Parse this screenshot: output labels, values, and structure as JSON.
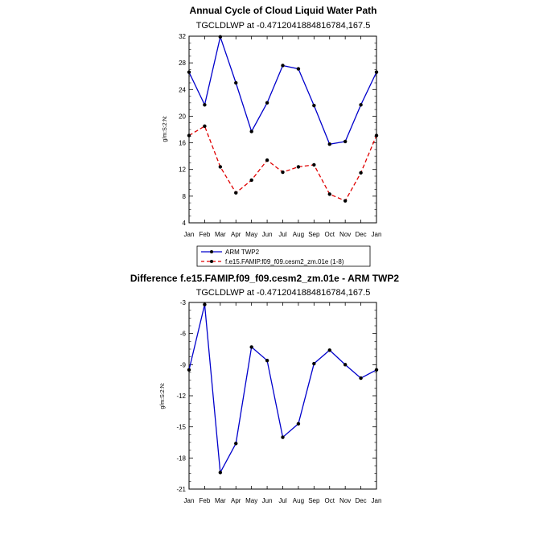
{
  "chart_data": [
    {
      "type": "line",
      "title": "Annual Cycle of Cloud Liquid Water Path",
      "subtitle": "TGCLDLWP at -0.4712041884816784,167.5",
      "ylabel": "g/m:S:2:N:",
      "categories": [
        "Jan",
        "Feb",
        "Mar",
        "Apr",
        "May",
        "Jun",
        "Jul",
        "Aug",
        "Sep",
        "Oct",
        "Nov",
        "Dec",
        "Jan"
      ],
      "ylim": [
        4,
        32
      ],
      "yticks": [
        "4",
        "8",
        "12",
        "16",
        "20",
        "24",
        "28",
        "32"
      ],
      "series": [
        {
          "name": "ARM TWP2",
          "color": "#0000cc",
          "dash": "solid",
          "values": [
            26.6,
            21.7,
            31.9,
            25.0,
            17.7,
            22.0,
            27.6,
            27.1,
            21.6,
            15.8,
            16.2,
            21.7,
            26.6
          ]
        },
        {
          "name": "f.e15.FAMIP.f09_f09.cesm2_zm.01e (1-8)",
          "color": "#e00000",
          "dash": "dashed",
          "values": [
            17.1,
            18.5,
            12.4,
            8.5,
            10.4,
            13.4,
            11.6,
            12.4,
            12.7,
            8.3,
            7.3,
            11.5,
            17.1
          ]
        }
      ],
      "legend": {
        "position": "bottom-center"
      }
    },
    {
      "type": "line",
      "title": "Difference f.e15.FAMIP.f09_f09.cesm2_zm.01e - ARM TWP2",
      "subtitle": "TGCLDLWP at -0.4712041884816784,167.5",
      "ylabel": "g/m:S:2:N:",
      "categories": [
        "Jan",
        "Feb",
        "Mar",
        "Apr",
        "May",
        "Jun",
        "Jul",
        "Aug",
        "Sep",
        "Oct",
        "Nov",
        "Dec",
        "Jan"
      ],
      "ylim": [
        -21,
        -3
      ],
      "yticks": [
        "-21",
        "-18",
        "-15",
        "-12",
        "-9",
        "-6",
        "-3"
      ],
      "series": [
        {
          "name": "Difference",
          "color": "#0000cc",
          "dash": "solid",
          "values": [
            -9.5,
            -3.2,
            -19.4,
            -16.6,
            -7.3,
            -8.6,
            -16.0,
            -14.7,
            -8.9,
            -7.6,
            -9.0,
            -10.3,
            -9.5
          ]
        }
      ]
    }
  ]
}
